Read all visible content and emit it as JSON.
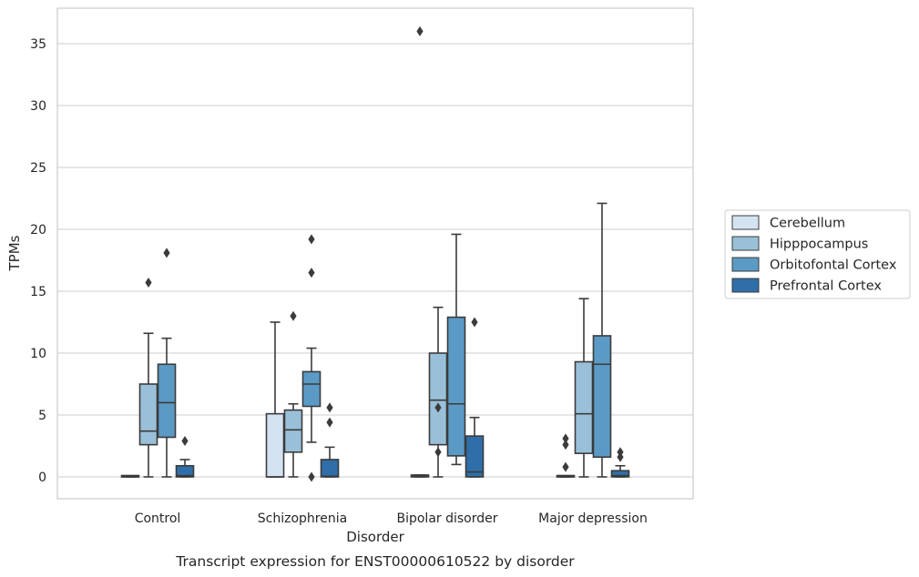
{
  "caption": "Transcript expression for ENST00000610522 by disorder",
  "chart_data": {
    "type": "box",
    "xlabel": "Disorder",
    "ylabel": "TPMs",
    "ylim": [
      -1.8,
      37.5
    ],
    "yticks": [
      0,
      5,
      10,
      15,
      20,
      25,
      30,
      35
    ],
    "ytick_labels": [
      "0",
      "5",
      "10",
      "15",
      "20",
      "25",
      "30",
      "35"
    ],
    "grid": true,
    "legend_position": "right",
    "categories": [
      "Control",
      "Schizophrenia",
      "Bipolar disorder",
      "Major depression"
    ],
    "series": [
      {
        "name": "Cerebellum",
        "color": "#d3e3f2",
        "boxes": [
          {
            "q1": 0,
            "median": 0,
            "q3": 0,
            "whisker_low": 0,
            "whisker_high": 0,
            "outliers": []
          },
          {
            "q1": 0,
            "median": 0,
            "q3": 5.1,
            "whisker_low": 0,
            "whisker_high": 12.5,
            "outliers": []
          },
          {
            "q1": 0,
            "median": 0.05,
            "q3": 0.15,
            "whisker_low": 0,
            "whisker_high": 0.15,
            "outliers": [
              36.0
            ]
          },
          {
            "q1": 0,
            "median": 0,
            "q3": 0,
            "whisker_low": 0,
            "whisker_high": 0,
            "outliers": [
              0.8,
              2.6,
              3.1
            ]
          }
        ]
      },
      {
        "name": "Hipppocampus",
        "color": "#9ac0d9",
        "boxes": [
          {
            "q1": 2.6,
            "median": 3.7,
            "q3": 7.5,
            "whisker_low": 0,
            "whisker_high": 11.6,
            "outliers": [
              15.7
            ]
          },
          {
            "q1": 2.0,
            "median": 3.8,
            "q3": 5.4,
            "whisker_low": 0,
            "whisker_high": 5.9,
            "outliers": [
              13.0
            ]
          },
          {
            "q1": 2.6,
            "median": 6.2,
            "q3": 10.0,
            "whisker_low": 0,
            "whisker_high": 13.7,
            "outliers": [
              2.0,
              5.6
            ]
          },
          {
            "q1": 1.9,
            "median": 5.1,
            "q3": 9.3,
            "whisker_low": 0,
            "whisker_high": 14.4,
            "outliers": []
          }
        ]
      },
      {
        "name": "Orbitofontal Cortex",
        "color": "#5b9ac5",
        "boxes": [
          {
            "q1": 3.2,
            "median": 6.0,
            "q3": 9.1,
            "whisker_low": 0,
            "whisker_high": 11.2,
            "outliers": [
              18.1
            ]
          },
          {
            "q1": 5.7,
            "median": 7.5,
            "q3": 8.5,
            "whisker_low": 2.8,
            "whisker_high": 10.4,
            "outliers": [
              0,
              16.5,
              19.2
            ]
          },
          {
            "q1": 1.7,
            "median": 5.9,
            "q3": 12.9,
            "whisker_low": 1.0,
            "whisker_high": 19.6,
            "outliers": []
          },
          {
            "q1": 1.6,
            "median": 9.1,
            "q3": 11.4,
            "whisker_low": 0,
            "whisker_high": 22.1,
            "outliers": []
          }
        ]
      },
      {
        "name": "Prefrontal Cortex",
        "color": "#2f6ea8",
        "boxes": [
          {
            "q1": 0,
            "median": 0.1,
            "q3": 0.9,
            "whisker_low": 0,
            "whisker_high": 1.4,
            "outliers": [
              2.9
            ]
          },
          {
            "q1": 0,
            "median": 0.05,
            "q3": 1.4,
            "whisker_low": 0,
            "whisker_high": 2.4,
            "outliers": [
              4.4,
              5.6
            ]
          },
          {
            "q1": 0,
            "median": 0.4,
            "q3": 3.3,
            "whisker_low": 0,
            "whisker_high": 4.8,
            "outliers": [
              12.5
            ]
          },
          {
            "q1": 0,
            "median": 0.1,
            "q3": 0.5,
            "whisker_low": 0,
            "whisker_high": 0.9,
            "outliers": [
              1.6,
              2.0
            ]
          }
        ]
      }
    ]
  }
}
